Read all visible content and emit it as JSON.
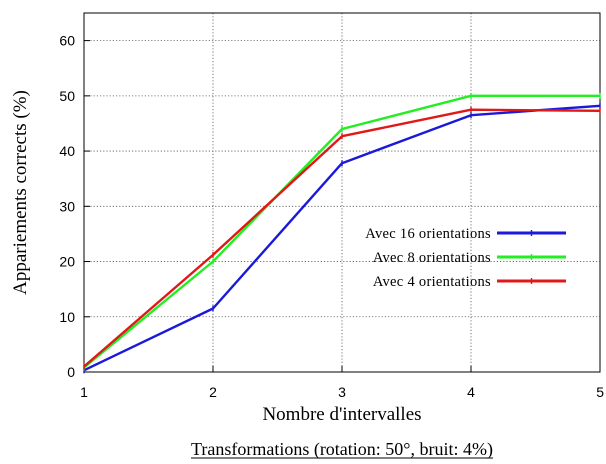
{
  "colors": {
    "series_1": "#1a1ad8",
    "series_2": "#22ee22",
    "series_3": "#e01818"
  },
  "caption": "Transformations (rotation: 50°, bruit: 4%)",
  "chart_data": {
    "type": "line",
    "title": "",
    "xlabel": "Nombre d'intervalles",
    "ylabel": "Appariements corrects (%)",
    "xlim": [
      1,
      5
    ],
    "ylim": [
      0,
      65
    ],
    "x": [
      1,
      2,
      3,
      4,
      5
    ],
    "xticks": [
      "1",
      "2",
      "3",
      "4",
      "5"
    ],
    "yticks": [
      "0",
      "10",
      "20",
      "30",
      "40",
      "50",
      "60"
    ],
    "grid": true,
    "legend_position": "center-right",
    "series": [
      {
        "name": "Avec 16 orientations",
        "color": "#1a1ad8",
        "values": [
          0.3,
          11.5,
          37.8,
          46.5,
          48.2
        ]
      },
      {
        "name": "Avec 8 orientations",
        "color": "#22ee22",
        "values": [
          0.8,
          20.0,
          44.0,
          50.0,
          50.0
        ]
      },
      {
        "name": "Avec 4 orientations",
        "color": "#e01818",
        "values": [
          1.0,
          21.2,
          42.7,
          47.5,
          47.3
        ]
      }
    ]
  }
}
